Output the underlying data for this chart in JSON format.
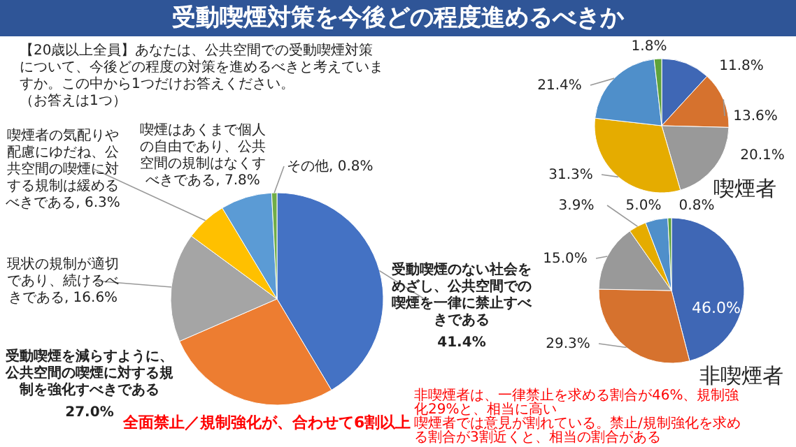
{
  "chart_data": [
    {
      "type": "pie",
      "title": "受動喫煙対策を今後どの程度進めるべきか",
      "subtitle": "【20歳以上全員】あなたは、公共空間での受動喫煙対策について、今後どの程度の対策を進めるべきと考えていますか。この中から1つだけお答えください。",
      "categories": [
        "受動喫煙のない社会をめざし、公共空間での喫煙を一律に禁止すべきである",
        "受動喫煙を減らすように、公共空間の喫煙に対する規制を強化すべきである",
        "現状の規制が適切であり、続けるべきである",
        "喫煙者の気配りや配慮にゆだね、公共空間の喫煙に対する規制は緩めるべきである",
        "喫煙はあくまで個人の自由であり、公共空間の規制はなくすべきである",
        "その他"
      ],
      "values": [
        41.4,
        27.0,
        16.6,
        6.3,
        7.8,
        0.8
      ],
      "value_labels": [
        "41.4%",
        "27.0%",
        "16.6%",
        "6.3%",
        "7.8%",
        "0.8%"
      ],
      "colors": [
        "#4472c4",
        "#ed7d31",
        "#a5a5a5",
        "#ffc000",
        "#5b9bd5",
        "#70ad47"
      ],
      "annotations": [
        "全面禁止／規制強化が、合わせて6割以上",
        "（お答えは1つ）"
      ]
    },
    {
      "type": "pie",
      "title": "喫煙者",
      "categories": [
        null,
        null,
        null,
        null,
        null,
        null
      ],
      "values": [
        11.8,
        13.6,
        20.1,
        31.3,
        21.4,
        1.8
      ],
      "value_labels": [
        "11.8%",
        "13.6%",
        "20.1%",
        "31.3%",
        "21.4%",
        "1.8%"
      ],
      "colors": [
        "#3f67b5",
        "#d6722e",
        "#999999",
        "#e5ac00",
        "#4f8fca",
        "#5fa33b"
      ]
    },
    {
      "type": "pie",
      "title": "非喫煙者",
      "categories": [
        null,
        null,
        null,
        null,
        null,
        null
      ],
      "values": [
        46.0,
        29.3,
        15.0,
        3.9,
        5.0,
        0.8
      ],
      "value_labels": [
        "46.0%",
        "29.3%",
        "15.0%",
        "3.9%",
        "5.0%",
        "0.8%"
      ],
      "colors": [
        "#3f67b5",
        "#d6722e",
        "#999999",
        "#e5ac00",
        "#4f8fca",
        "#5fa33b"
      ],
      "annotations": [
        "非喫煙者は、一律禁止を求める割合が46%、規制強化29%と、相当に高い",
        "喫煙者では意見が割れている。禁止/規制強化を求める割合が3割近くと、相当の割合がある"
      ]
    }
  ]
}
